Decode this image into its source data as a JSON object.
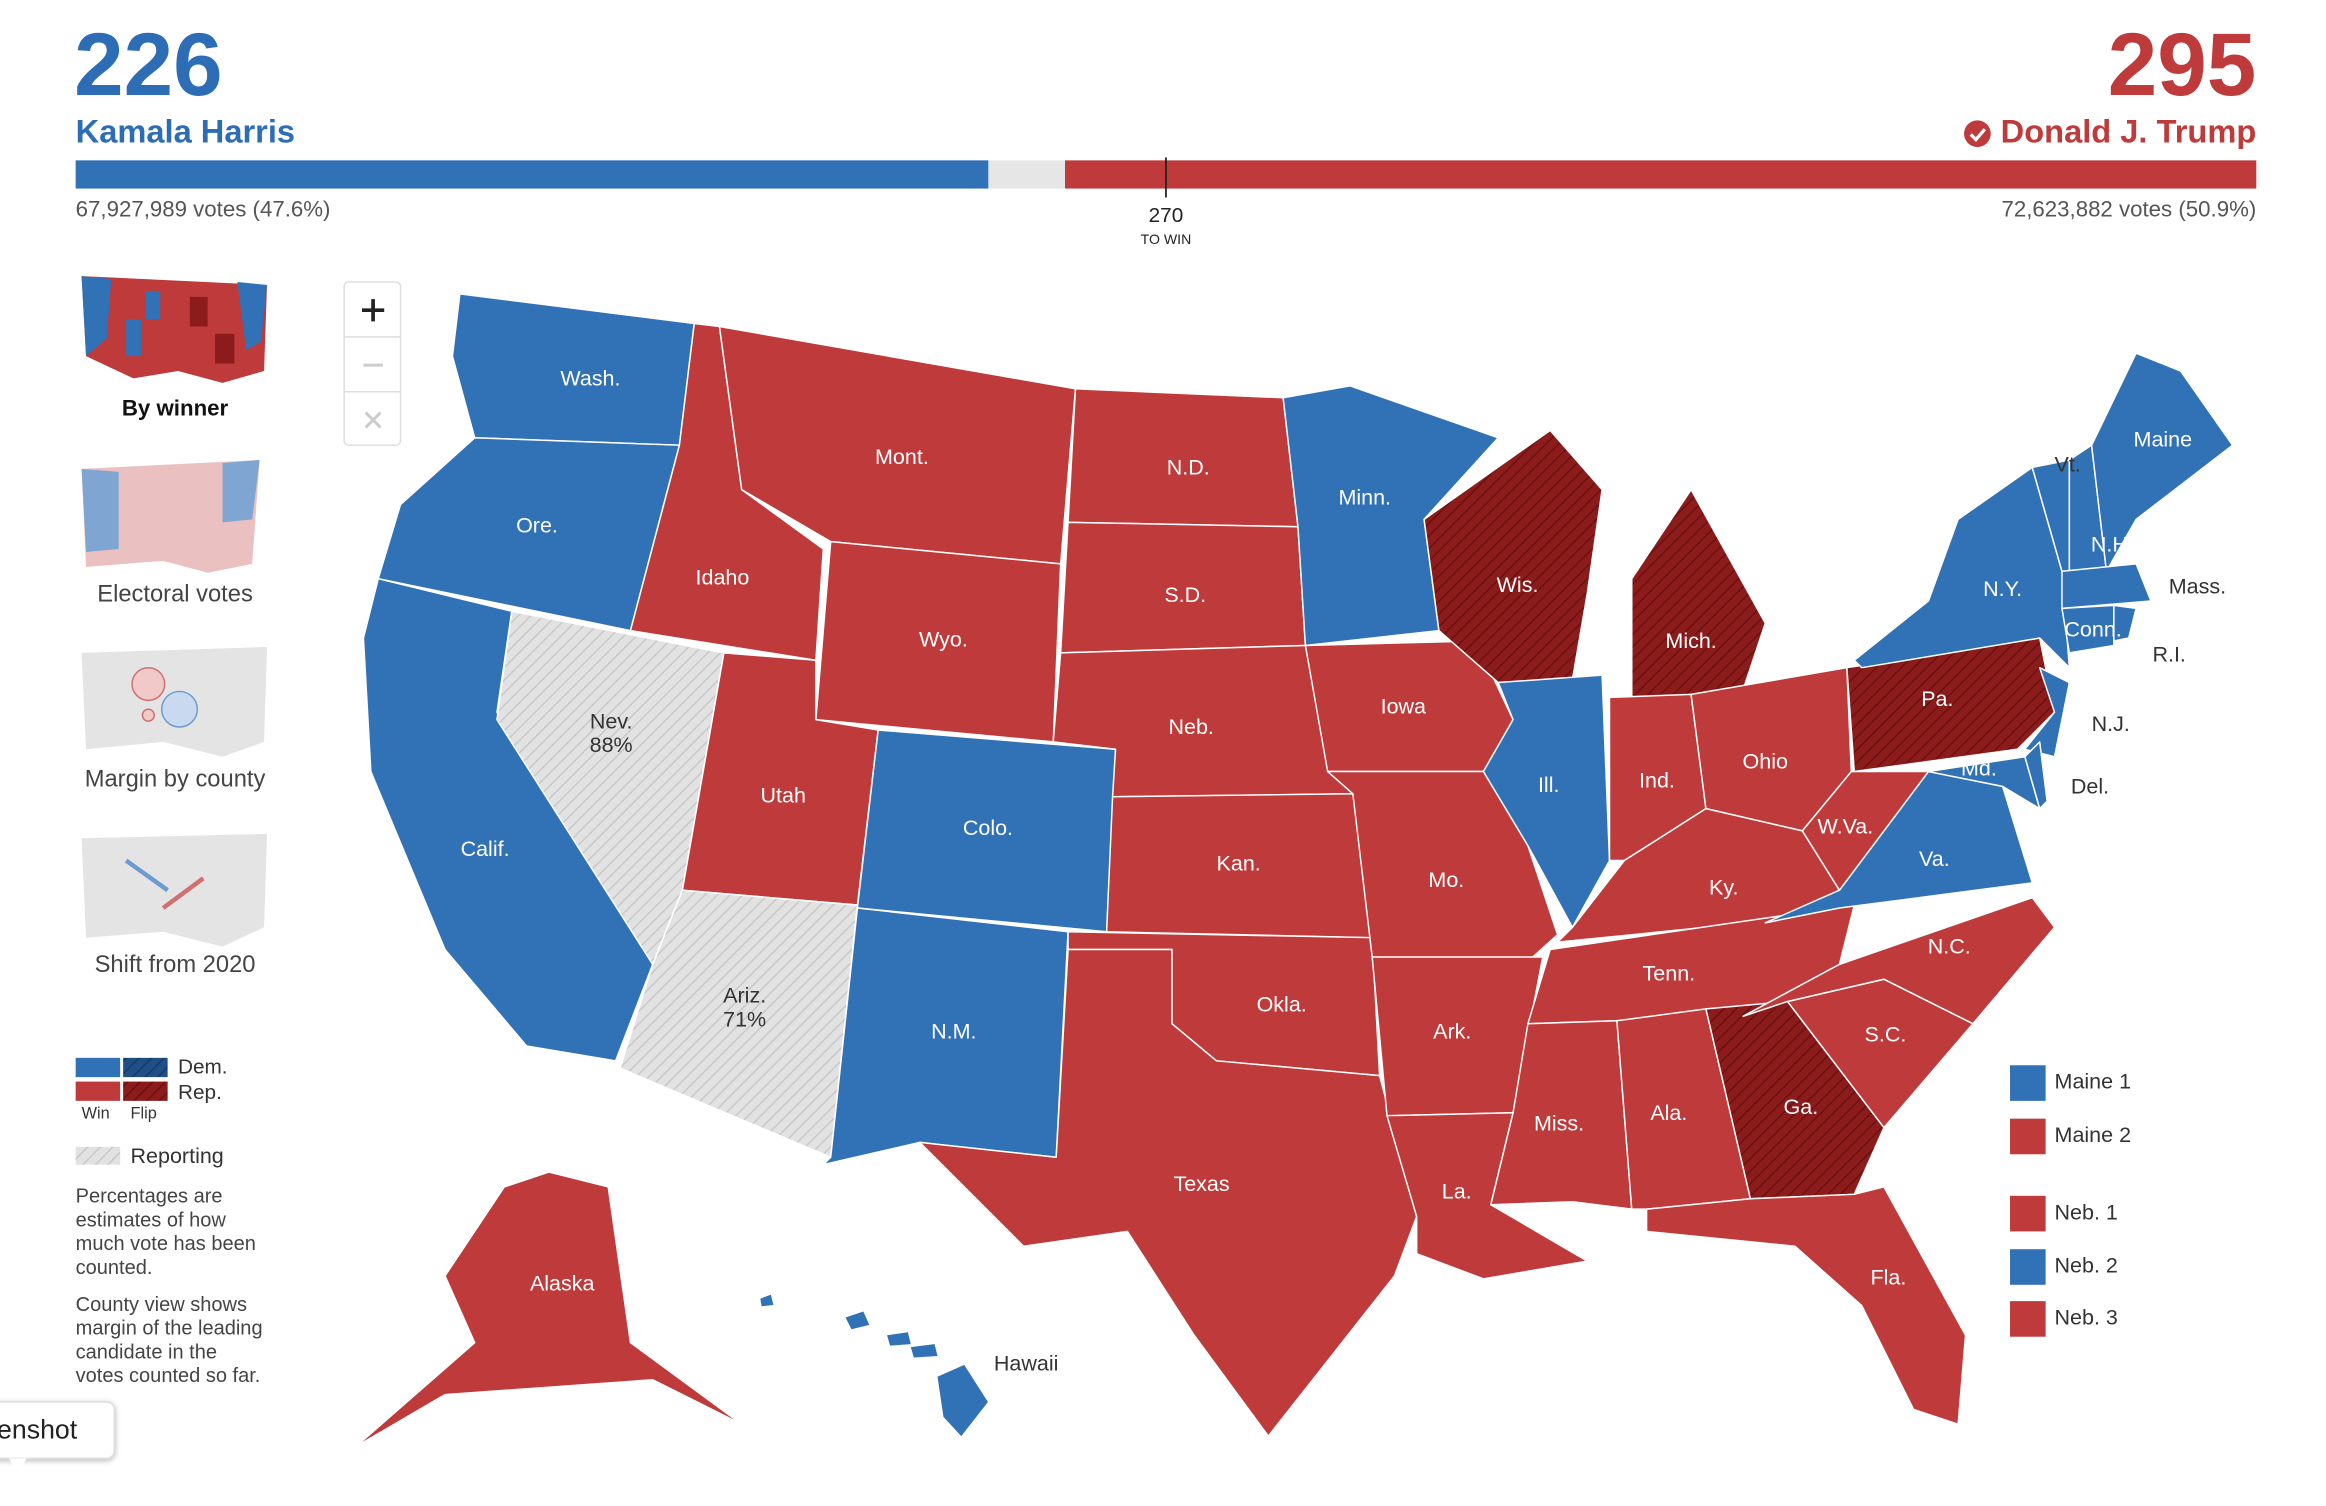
{
  "header": {
    "candidates": [
      {
        "name": "Kamala Harris",
        "electoral_votes": 226,
        "votes": "67,927,989 votes (47.6%)",
        "party": "dem"
      },
      {
        "name": "Donald J. Trump",
        "electoral_votes": 295,
        "votes": "72,623,882 votes (50.9%)",
        "party": "rep",
        "winner": true
      }
    ],
    "threshold": {
      "value": 270,
      "label": "TO WIN"
    }
  },
  "views": [
    {
      "label": "By winner",
      "selected": true
    },
    {
      "label": "Electoral votes",
      "selected": false
    },
    {
      "label": "Margin by county",
      "selected": false
    },
    {
      "label": "Shift from 2020",
      "selected": false
    }
  ],
  "legend": {
    "dem": "Dem.",
    "rep": "Rep.",
    "win": "Win",
    "flip": "Flip",
    "reporting": "Reporting",
    "notes": [
      [
        "Percentages are",
        "estimates of how",
        "much vote has been",
        "counted."
      ],
      [
        "County view shows",
        "margin of the leading",
        "candidate in the",
        "votes counted so far."
      ]
    ]
  },
  "states": [
    {
      "label": "Wash.",
      "result": "dem"
    },
    {
      "label": "Ore.",
      "result": "dem"
    },
    {
      "label": "Calif.",
      "result": "dem"
    },
    {
      "label": "Nev.",
      "result": "reporting",
      "reported": "88%"
    },
    {
      "label": "Idaho",
      "result": "rep"
    },
    {
      "label": "Mont.",
      "result": "rep"
    },
    {
      "label": "Wyo.",
      "result": "rep"
    },
    {
      "label": "Utah",
      "result": "rep"
    },
    {
      "label": "Ariz.",
      "result": "reporting",
      "reported": "71%"
    },
    {
      "label": "Colo.",
      "result": "dem"
    },
    {
      "label": "N.M.",
      "result": "dem"
    },
    {
      "label": "N.D.",
      "result": "rep"
    },
    {
      "label": "S.D.",
      "result": "rep"
    },
    {
      "label": "Neb.",
      "result": "rep"
    },
    {
      "label": "Kan.",
      "result": "rep"
    },
    {
      "label": "Okla.",
      "result": "rep"
    },
    {
      "label": "Texas",
      "result": "rep"
    },
    {
      "label": "Minn.",
      "result": "dem"
    },
    {
      "label": "Iowa",
      "result": "rep"
    },
    {
      "label": "Mo.",
      "result": "rep"
    },
    {
      "label": "Ark.",
      "result": "rep"
    },
    {
      "label": "La.",
      "result": "rep"
    },
    {
      "label": "Wis.",
      "result": "flip"
    },
    {
      "label": "Mich.",
      "result": "flip"
    },
    {
      "label": "Ill.",
      "result": "dem"
    },
    {
      "label": "Ind.",
      "result": "rep"
    },
    {
      "label": "Ohio",
      "result": "rep"
    },
    {
      "label": "Ky.",
      "result": "rep"
    },
    {
      "label": "Tenn.",
      "result": "rep"
    },
    {
      "label": "Miss.",
      "result": "rep"
    },
    {
      "label": "Ala.",
      "result": "rep"
    },
    {
      "label": "Ga.",
      "result": "flip"
    },
    {
      "label": "Fla.",
      "result": "rep"
    },
    {
      "label": "S.C.",
      "result": "rep"
    },
    {
      "label": "N.C.",
      "result": "rep"
    },
    {
      "label": "Va.",
      "result": "dem"
    },
    {
      "label": "W.Va.",
      "result": "rep"
    },
    {
      "label": "Pa.",
      "result": "flip"
    },
    {
      "label": "N.Y.",
      "result": "dem"
    },
    {
      "label": "N.J.",
      "result": "dem"
    },
    {
      "label": "Vt.",
      "result": "dem"
    },
    {
      "label": "N.H.",
      "result": "dem"
    },
    {
      "label": "Maine",
      "result": "dem"
    },
    {
      "label": "Mass.",
      "result": "dem"
    },
    {
      "label": "Conn.",
      "result": "dem"
    },
    {
      "label": "R.I.",
      "result": "dem"
    },
    {
      "label": "Md.",
      "result": "dem"
    },
    {
      "label": "Del.",
      "result": "dem"
    },
    {
      "label": "Alaska",
      "result": "rep"
    },
    {
      "label": "Hawaii",
      "result": "dem"
    }
  ],
  "districts": [
    {
      "label": "Maine 1",
      "result": "dem"
    },
    {
      "label": "Maine 2",
      "result": "rep"
    },
    {
      "label": "Neb. 1",
      "result": "rep"
    },
    {
      "label": "Neb. 2",
      "result": "dem"
    },
    {
      "label": "Neb. 3",
      "result": "rep"
    }
  ],
  "tooltip": "enshot"
}
